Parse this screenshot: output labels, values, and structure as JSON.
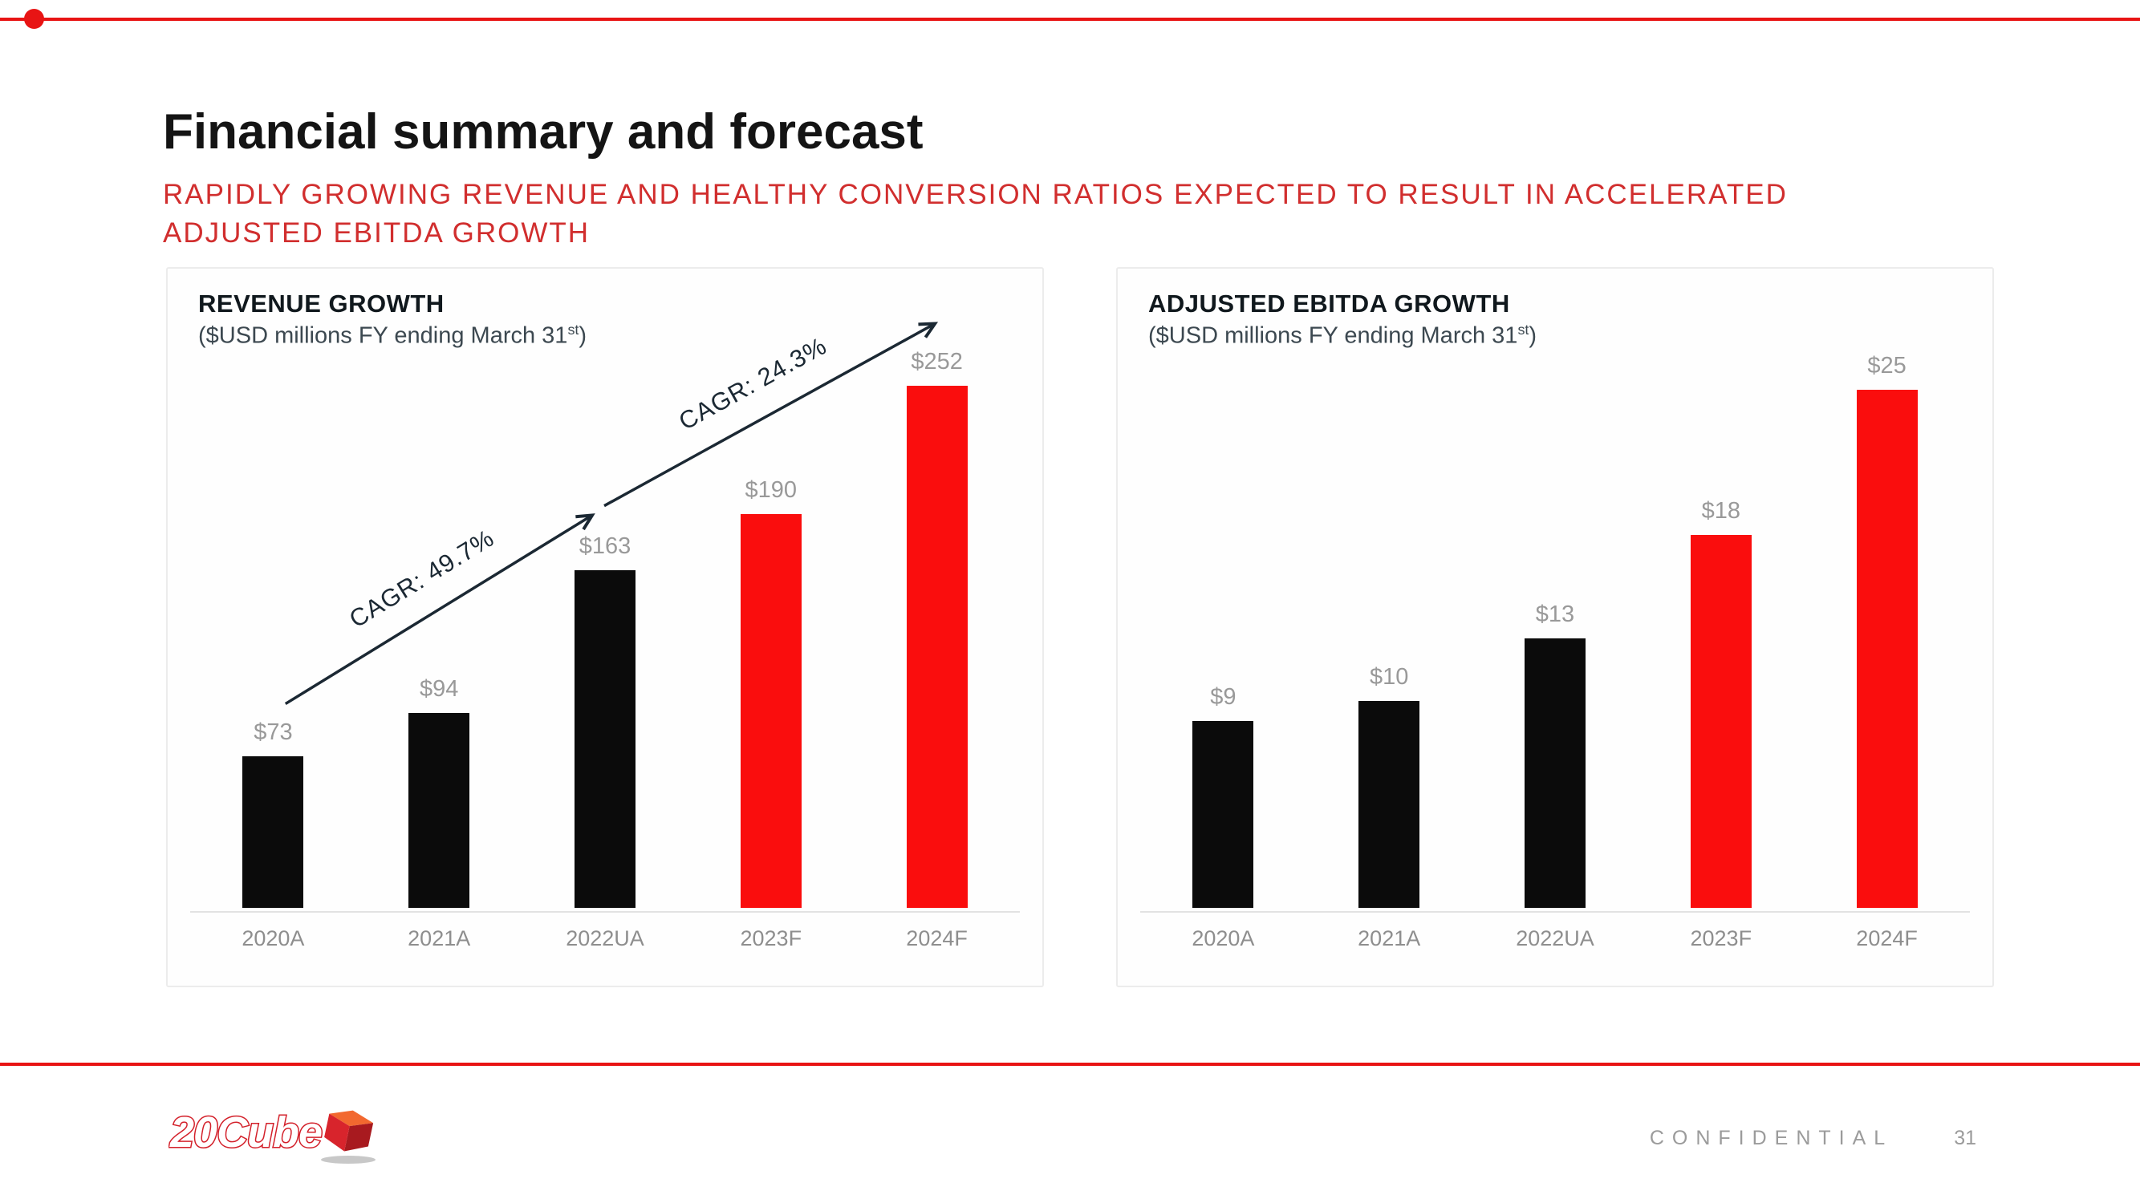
{
  "slide": {
    "title": "Financial summary and forecast",
    "subtitle_line1": "RAPIDLY GROWING REVENUE AND HEALTHY CONVERSION RATIOS EXPECTED TO RESULT IN ACCELERATED",
    "subtitle_line2": "ADJUSTED EBITDA GROWTH",
    "accent_color": "#e81414"
  },
  "chart_data": [
    {
      "type": "bar",
      "title": "REVENUE GROWTH",
      "subtitle_prefix": "($USD millions FY ending March 31",
      "subtitle_sup": "st",
      "subtitle_suffix": ")",
      "categories": [
        "2020A",
        "2021A",
        "2022UA",
        "2023F",
        "2024F"
      ],
      "values": [
        73,
        94,
        163,
        190,
        252
      ],
      "value_labels": [
        "$73",
        "$94",
        "$163",
        "$190",
        "$252"
      ],
      "bar_colors": [
        "#0b0b0b",
        "#0b0b0b",
        "#0b0b0b",
        "#fa0d0d",
        "#fa0d0d"
      ],
      "ylim": [
        0,
        260
      ],
      "grid": false,
      "legend": false,
      "annotations": [
        {
          "label": "CAGR: 49.7%"
        },
        {
          "label": "CAGR: 24.3%"
        }
      ]
    },
    {
      "type": "bar",
      "title": "ADJUSTED EBITDA GROWTH",
      "subtitle_prefix": "($USD millions FY ending March 31",
      "subtitle_sup": "st",
      "subtitle_suffix": ")",
      "categories": [
        "2020A",
        "2021A",
        "2022UA",
        "2023F",
        "2024F"
      ],
      "values": [
        9,
        10,
        13,
        18,
        25
      ],
      "value_labels": [
        "$9",
        "$10",
        "$13",
        "$18",
        "$25"
      ],
      "bar_colors": [
        "#0b0b0b",
        "#0b0b0b",
        "#0b0b0b",
        "#fa0d0d",
        "#fa0d0d"
      ],
      "ylim": [
        0,
        26
      ],
      "grid": false,
      "legend": false,
      "annotations": []
    }
  ],
  "footer": {
    "logo_text": "20Cube",
    "confidential": "CONFIDENTIAL",
    "page_number": "31"
  }
}
